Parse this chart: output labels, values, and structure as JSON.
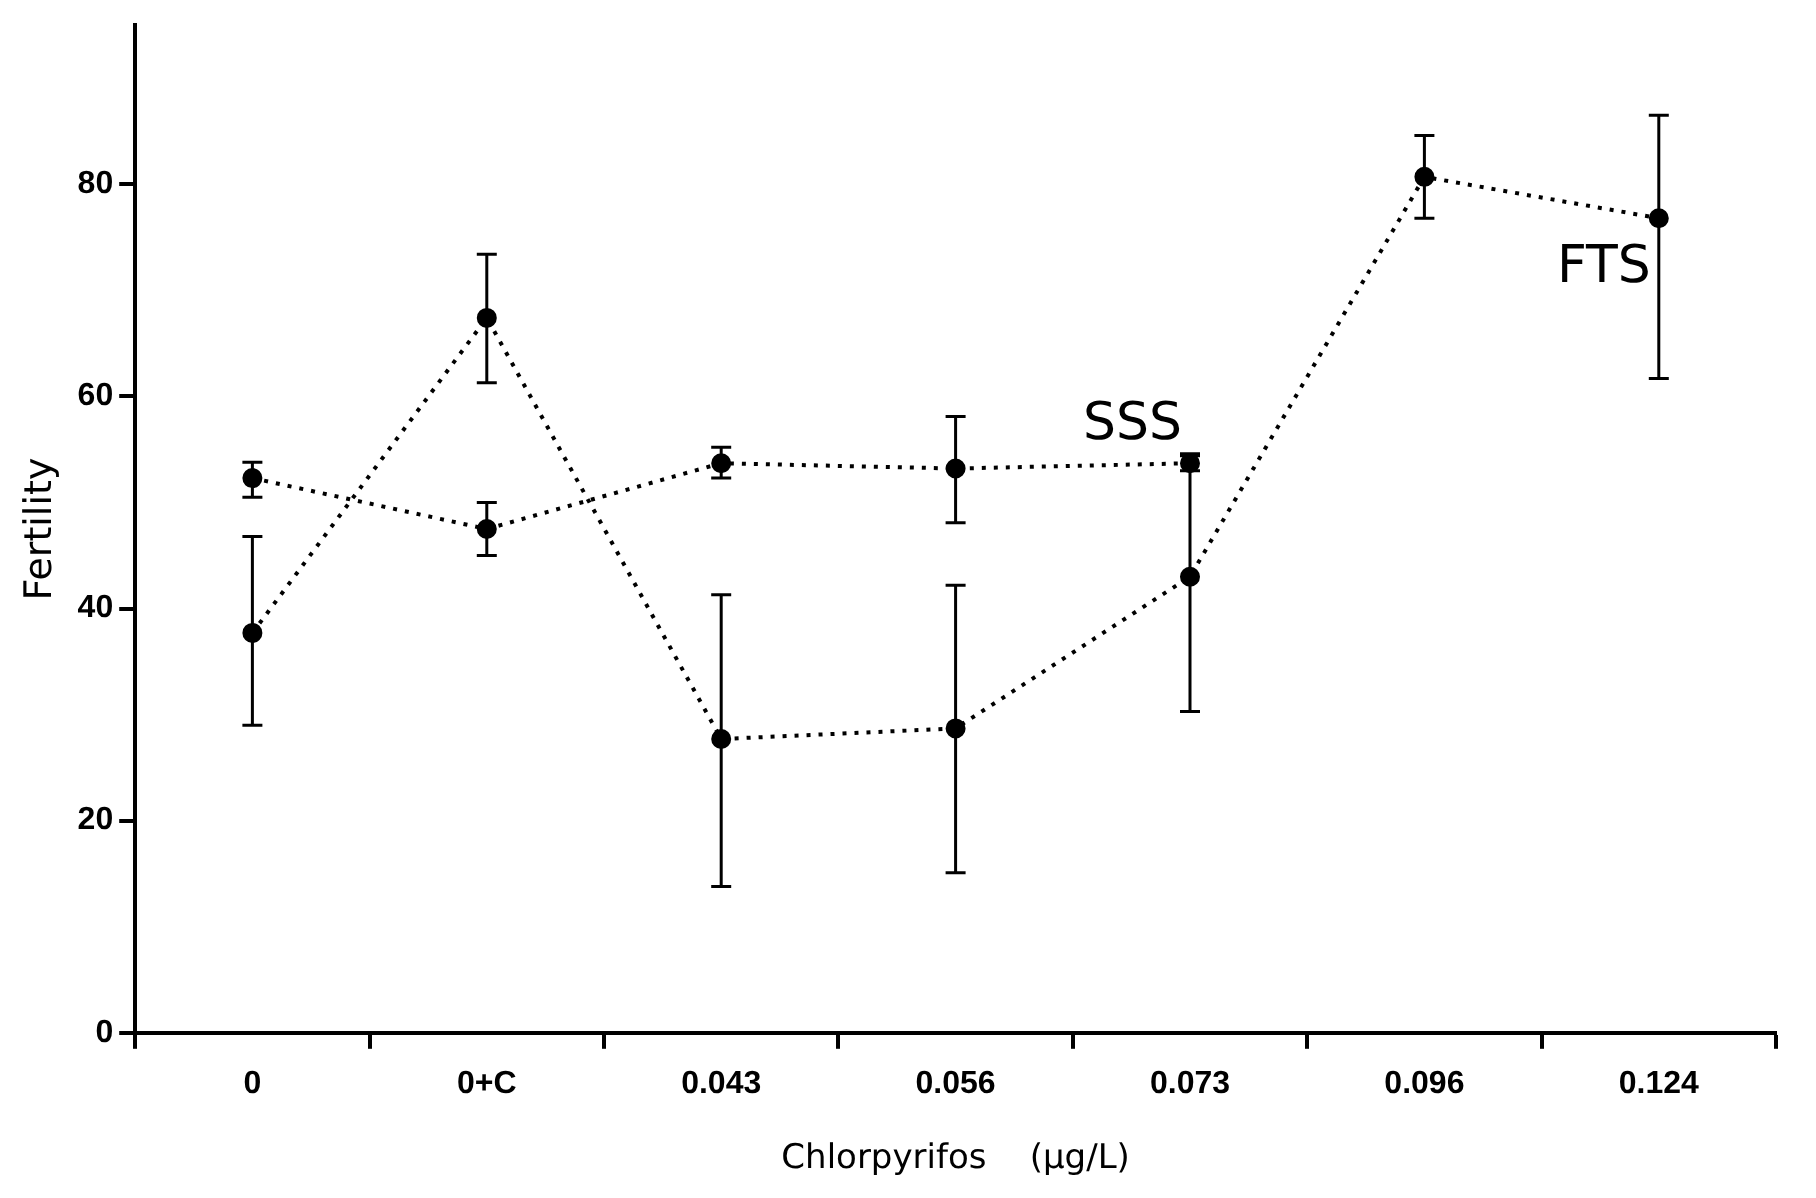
{
  "chart_data": {
    "type": "line",
    "xlabel": "Chlorpyrifos    (µg/L)",
    "ylabel": "Fertility",
    "categories": [
      "0",
      "0+C",
      "0.043",
      "0.056",
      "0.073",
      "0.096",
      "0.124"
    ],
    "series": [
      {
        "name": "FTS",
        "color": "#000000",
        "values": [
          37.7,
          67.4,
          27.7,
          28.7,
          43.0,
          80.7,
          76.8
        ],
        "errors": [
          [
            29.0,
            46.8
          ],
          [
            61.3,
            73.4
          ],
          [
            13.8,
            41.3
          ],
          [
            15.1,
            42.2
          ],
          [
            30.3,
            54.6
          ],
          [
            76.8,
            84.6
          ],
          [
            61.7,
            86.5
          ]
        ]
      },
      {
        "name": "SSS",
        "color": "#000000",
        "values": [
          52.3,
          47.5,
          53.7,
          53.2,
          53.7,
          null,
          null
        ],
        "errors": [
          [
            50.5,
            53.8
          ],
          [
            45.0,
            50.0
          ],
          [
            52.3,
            55.2
          ],
          [
            48.1,
            58.1
          ],
          [
            53.0,
            54.4
          ],
          null,
          null
        ]
      }
    ],
    "ylim": [
      0,
      95
    ],
    "yticks": [
      0,
      20,
      40,
      60,
      80
    ],
    "grid": false,
    "legend": false,
    "marker": "circle",
    "line_style": "dotted"
  }
}
